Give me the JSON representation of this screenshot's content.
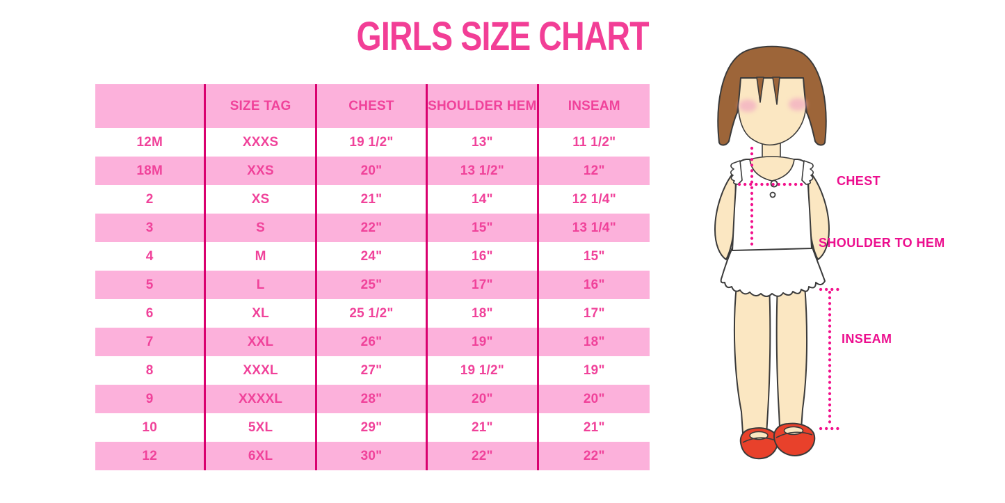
{
  "title": "GIRLS SIZE CHART",
  "chart_data": {
    "type": "table",
    "title": "GIRLS SIZE CHART",
    "columns": [
      "",
      "SIZE TAG",
      "CHEST",
      "SHOULDER HEM",
      "INSEAM"
    ],
    "rows": [
      [
        "12M",
        "XXXS",
        "19 1/2\"",
        "13\"",
        "11 1/2\""
      ],
      [
        "18M",
        "XXS",
        "20\"",
        "13 1/2\"",
        "12\""
      ],
      [
        "2",
        "XS",
        "21\"",
        "14\"",
        "12 1/4\""
      ],
      [
        "3",
        "S",
        "22\"",
        "15\"",
        "13 1/4\""
      ],
      [
        "4",
        "M",
        "24\"",
        "16\"",
        "15\""
      ],
      [
        "5",
        "L",
        "25\"",
        "17\"",
        "16\""
      ],
      [
        "6",
        "XL",
        "25 1/2\"",
        "18\"",
        "17\""
      ],
      [
        "7",
        "XXL",
        "26\"",
        "19\"",
        "18\""
      ],
      [
        "8",
        "XXXL",
        "27\"",
        "19 1/2\"",
        "19\""
      ],
      [
        "9",
        "XXXXL",
        "28\"",
        "20\"",
        "20\""
      ],
      [
        "10",
        "5XL",
        "29\"",
        "21\"",
        "21\""
      ],
      [
        "12",
        "6XL",
        "30\"",
        "22\"",
        "22\""
      ]
    ]
  },
  "figure": {
    "illustration": "girl-front-view",
    "labels": {
      "chest": "CHEST",
      "shoulder_to_hem": "SHOULDER TO HEM",
      "inseam": "INSEAM"
    }
  },
  "colors": {
    "title_pink": "#F23E96",
    "table_text_pink": "#F0429A",
    "row_pink": "#FCB1DB",
    "divider_magenta": "#D9016F",
    "measure_pink": "#F2118C",
    "label_magenta": "#EC0E8E",
    "hair_brown": "#9D6539",
    "skin": "#FBE7C2",
    "cheek": "#F2A9C2",
    "shoe_red": "#E8412B",
    "outline": "#3A3A3A",
    "background": "#FFFFFF"
  }
}
